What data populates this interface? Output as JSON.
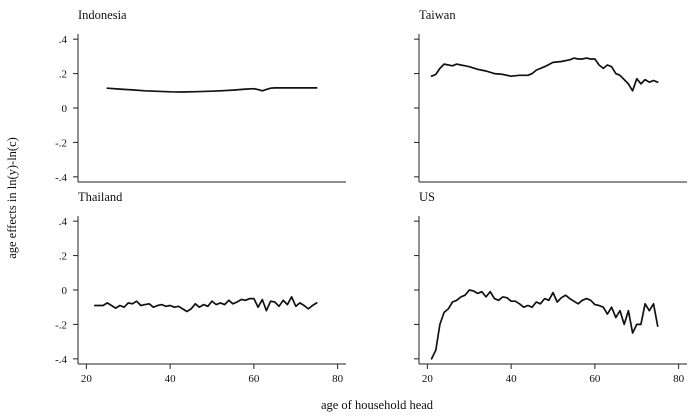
{
  "figure": {
    "ylabel": "age effects in ln(y)-ln(c)",
    "xlabel": "age of household head"
  },
  "chart_data": [
    {
      "type": "line",
      "title": "Indonesia",
      "xlim": [
        18,
        82
      ],
      "ylim": [
        -0.43,
        0.43
      ],
      "xticks": [],
      "xtick_labels": [],
      "yticks": [
        0.4,
        0.2,
        0,
        -0.2,
        -0.4
      ],
      "ytick_labels": [
        ".4",
        ".2",
        "0",
        "-.2",
        "-.4"
      ],
      "series": [
        {
          "x": [
            25,
            28,
            31,
            34,
            37,
            40,
            43,
            46,
            49,
            52,
            55,
            58,
            60,
            61,
            62,
            63,
            64,
            65,
            67,
            70,
            73,
            75
          ],
          "y": [
            0.115,
            0.11,
            0.105,
            0.1,
            0.097,
            0.094,
            0.093,
            0.095,
            0.097,
            0.1,
            0.104,
            0.11,
            0.112,
            0.107,
            0.1,
            0.108,
            0.115,
            0.117,
            0.117,
            0.117,
            0.117,
            0.117
          ]
        }
      ]
    },
    {
      "type": "line",
      "title": "Taiwan",
      "xlim": [
        18,
        82
      ],
      "ylim": [
        -0.43,
        0.43
      ],
      "xticks": [],
      "xtick_labels": [],
      "yticks": [
        0.4,
        0.2,
        0,
        -0.2,
        -0.4
      ],
      "ytick_labels": [],
      "series": [
        {
          "x": [
            21,
            22,
            23,
            24,
            25,
            26,
            27,
            28,
            29,
            30,
            32,
            34,
            36,
            38,
            40,
            42,
            44,
            45,
            46,
            48,
            50,
            52,
            54,
            55,
            56,
            57,
            58,
            59,
            60,
            61,
            62,
            63,
            64,
            65,
            66,
            67,
            68,
            69,
            70,
            71,
            72,
            73,
            74,
            75
          ],
          "y": [
            0.185,
            0.195,
            0.23,
            0.255,
            0.25,
            0.245,
            0.255,
            0.25,
            0.245,
            0.24,
            0.225,
            0.215,
            0.2,
            0.195,
            0.185,
            0.19,
            0.19,
            0.2,
            0.22,
            0.24,
            0.265,
            0.27,
            0.28,
            0.29,
            0.285,
            0.285,
            0.29,
            0.285,
            0.285,
            0.25,
            0.23,
            0.25,
            0.24,
            0.2,
            0.19,
            0.165,
            0.14,
            0.1,
            0.17,
            0.14,
            0.165,
            0.15,
            0.16,
            0.15
          ]
        }
      ]
    },
    {
      "type": "line",
      "title": "Thailand",
      "xlim": [
        18,
        82
      ],
      "ylim": [
        -0.43,
        0.43
      ],
      "xticks": [
        20,
        40,
        60,
        80
      ],
      "xtick_labels": [
        "20",
        "40",
        "60",
        "80"
      ],
      "yticks": [
        0.4,
        0.2,
        0,
        -0.2,
        -0.4
      ],
      "ytick_labels": [
        ".4",
        ".2",
        "0",
        "-.2",
        "-.4"
      ],
      "series": [
        {
          "x": [
            22,
            23,
            24,
            25,
            26,
            27,
            28,
            29,
            30,
            31,
            32,
            33,
            34,
            35,
            36,
            37,
            38,
            39,
            40,
            41,
            42,
            43,
            44,
            45,
            46,
            47,
            48,
            49,
            50,
            51,
            52,
            53,
            54,
            55,
            56,
            57,
            58,
            59,
            60,
            61,
            62,
            63,
            64,
            65,
            66,
            67,
            68,
            69,
            70,
            71,
            72,
            73,
            74,
            75
          ],
          "y": [
            -0.09,
            -0.09,
            -0.09,
            -0.075,
            -0.09,
            -0.105,
            -0.09,
            -0.1,
            -0.075,
            -0.08,
            -0.065,
            -0.09,
            -0.085,
            -0.08,
            -0.1,
            -0.09,
            -0.085,
            -0.095,
            -0.09,
            -0.1,
            -0.095,
            -0.11,
            -0.125,
            -0.11,
            -0.08,
            -0.1,
            -0.085,
            -0.095,
            -0.065,
            -0.085,
            -0.075,
            -0.085,
            -0.06,
            -0.08,
            -0.07,
            -0.055,
            -0.06,
            -0.05,
            -0.05,
            -0.1,
            -0.055,
            -0.12,
            -0.065,
            -0.07,
            -0.095,
            -0.06,
            -0.085,
            -0.04,
            -0.095,
            -0.075,
            -0.09,
            -0.11,
            -0.09,
            -0.075
          ]
        }
      ]
    },
    {
      "type": "line",
      "title": "US",
      "xlim": [
        18,
        82
      ],
      "ylim": [
        -0.43,
        0.43
      ],
      "xticks": [
        20,
        40,
        60,
        80
      ],
      "xtick_labels": [
        "20",
        "40",
        "60",
        "80"
      ],
      "yticks": [
        0.4,
        0.2,
        0,
        -0.2,
        -0.4
      ],
      "ytick_labels": [],
      "series": [
        {
          "x": [
            21,
            22,
            23,
            24,
            25,
            26,
            27,
            28,
            29,
            30,
            31,
            32,
            33,
            34,
            35,
            36,
            37,
            38,
            39,
            40,
            41,
            42,
            43,
            44,
            45,
            46,
            47,
            48,
            49,
            50,
            51,
            52,
            53,
            54,
            55,
            56,
            57,
            58,
            59,
            60,
            61,
            62,
            63,
            64,
            65,
            66,
            67,
            68,
            69,
            70,
            71,
            72,
            73,
            74,
            75
          ],
          "y": [
            -0.4,
            -0.35,
            -0.2,
            -0.13,
            -0.11,
            -0.07,
            -0.06,
            -0.04,
            -0.03,
            0,
            -0.005,
            -0.02,
            -0.01,
            -0.04,
            -0.01,
            -0.05,
            -0.06,
            -0.04,
            -0.045,
            -0.065,
            -0.065,
            -0.08,
            -0.1,
            -0.09,
            -0.1,
            -0.07,
            -0.08,
            -0.05,
            -0.06,
            -0.015,
            -0.07,
            -0.045,
            -0.03,
            -0.05,
            -0.065,
            -0.08,
            -0.06,
            -0.05,
            -0.06,
            -0.085,
            -0.09,
            -0.1,
            -0.14,
            -0.1,
            -0.16,
            -0.12,
            -0.2,
            -0.12,
            -0.25,
            -0.2,
            -0.2,
            -0.08,
            -0.12,
            -0.08,
            -0.21
          ]
        }
      ]
    }
  ]
}
